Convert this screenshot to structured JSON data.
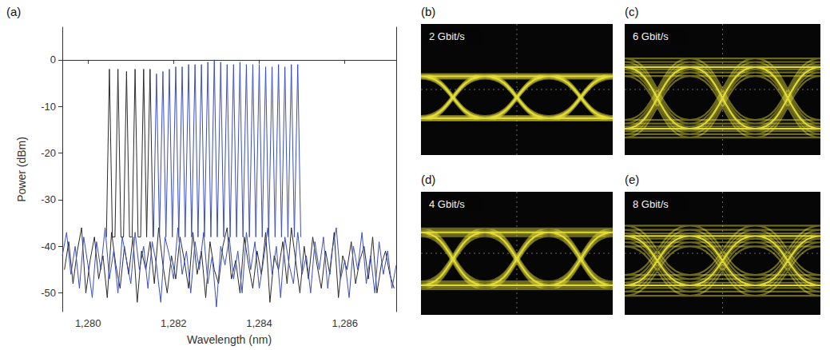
{
  "chart_data": {
    "type": "line",
    "panel": "(a)",
    "x_label": "Wavelength (nm)",
    "y_label": "Power (dBm)",
    "xlim": [
      1279.4,
      1287.2
    ],
    "xticks": [
      1280,
      1282,
      1284,
      1286
    ],
    "ylim": [
      -54,
      7
    ],
    "yticks": [
      -50,
      -40,
      -30,
      -20,
      -10,
      0
    ],
    "grid": false,
    "series": [
      {
        "color": "#2b2b2b",
        "x": [
          1279.45,
          1279.55,
          1279.65,
          1279.75,
          1279.85,
          1279.95,
          1280.05,
          1280.15,
          1280.25,
          1280.35,
          1280.45,
          1280.55,
          1280.65,
          1280.75,
          1280.85,
          1280.95,
          1281.05,
          1281.15,
          1281.25,
          1281.35,
          1281.45,
          1281.55,
          1281.65,
          1281.75,
          1281.85,
          1281.95,
          1282.05,
          1282.15,
          1282.25,
          1282.35,
          1282.45,
          1282.55,
          1282.65,
          1282.75,
          1282.85,
          1282.95,
          1283.05,
          1283.15,
          1283.25,
          1283.35,
          1283.45,
          1283.55,
          1283.65,
          1283.75,
          1283.85,
          1283.95,
          1284.05,
          1284.15,
          1284.25,
          1284.35,
          1284.45,
          1284.55,
          1284.65,
          1284.75,
          1284.85,
          1284.95,
          1285.05,
          1285.15,
          1285.25,
          1285.35,
          1285.45,
          1285.55,
          1285.65,
          1285.75,
          1285.85,
          1285.95,
          1286.05,
          1286.15,
          1286.25,
          1286.35,
          1286.45,
          1286.55,
          1286.65,
          1286.75,
          1286.85,
          1286.95,
          1287.05,
          1287.15
        ],
        "values": [
          -45,
          -39,
          -48,
          -41,
          -36,
          -50,
          -43,
          -38,
          -47,
          -42,
          -51,
          -37,
          -44,
          -49,
          -40,
          -46,
          -38,
          -52,
          -41,
          -45,
          -39,
          -48,
          -36,
          -44,
          -50,
          -42,
          -47,
          -38,
          -43,
          -49,
          -37,
          -46,
          -41,
          -51,
          -39,
          -45,
          -48,
          -40,
          -36,
          -47,
          -43,
          -50,
          -38,
          -44,
          -49,
          -41,
          -46,
          -37,
          -52,
          -42,
          -45,
          -39,
          -48,
          -36,
          -43,
          -50,
          -40,
          -47,
          -38,
          -44,
          -49,
          -41,
          -46,
          -37,
          -51,
          -42,
          -45,
          -39,
          -48,
          -43,
          -40,
          -47,
          -38,
          -50,
          -44,
          -41,
          -46,
          -49
        ]
      },
      {
        "color": "#3c4fc0",
        "x": [
          1279.4,
          1279.5,
          1279.6,
          1279.7,
          1279.8,
          1279.9,
          1280.0,
          1280.1,
          1280.2,
          1280.3,
          1280.4,
          1280.5,
          1280.6,
          1280.7,
          1280.8,
          1280.9,
          1281.0,
          1281.1,
          1281.2,
          1281.3,
          1281.4,
          1281.5,
          1281.6,
          1281.7,
          1281.8,
          1281.9,
          1282.0,
          1282.1,
          1282.2,
          1282.3,
          1282.4,
          1282.5,
          1282.6,
          1282.7,
          1282.8,
          1282.9,
          1283.0,
          1283.1,
          1283.2,
          1283.3,
          1283.4,
          1283.5,
          1283.6,
          1283.7,
          1283.8,
          1283.9,
          1284.0,
          1284.1,
          1284.2,
          1284.3,
          1284.4,
          1284.5,
          1284.6,
          1284.7,
          1284.8,
          1284.9,
          1285.0,
          1285.1,
          1285.2,
          1285.3,
          1285.4,
          1285.5,
          1285.6,
          1285.7,
          1285.8,
          1285.9,
          1286.0,
          1286.1,
          1286.2,
          1286.3,
          1286.4,
          1286.5,
          1286.6,
          1286.7,
          1286.8,
          1286.9,
          1287.0,
          1287.1,
          1287.2
        ],
        "values": [
          -42,
          -37,
          -46,
          -40,
          -49,
          -38,
          -44,
          -51,
          -39,
          -45,
          -36,
          -47,
          -41,
          -50,
          -38,
          -43,
          -48,
          -37,
          -45,
          -40,
          -49,
          -39,
          -44,
          -52,
          -38,
          -42,
          -47,
          -36,
          -46,
          -41,
          -50,
          -39,
          -45,
          -37,
          -48,
          -42,
          -53,
          -40,
          -44,
          -38,
          -47,
          -41,
          -50,
          -37,
          -45,
          -39,
          -49,
          -43,
          -36,
          -46,
          -40,
          -51,
          -38,
          -44,
          -48,
          -37,
          -46,
          -42,
          -50,
          -39,
          -45,
          -38,
          -49,
          -41,
          -36,
          -47,
          -43,
          -51,
          -40,
          -45,
          -37,
          -48,
          -42,
          -50,
          -39,
          -46,
          -41,
          -49,
          -44
        ]
      },
      {
        "color": "#2b2b2b",
        "x": [
          1280.43,
          1280.5,
          1280.57,
          1280.63,
          1280.7,
          1280.77,
          1280.83,
          1280.9,
          1280.97,
          1281.03,
          1281.1,
          1281.17,
          1281.23,
          1281.3,
          1281.37,
          1281.38,
          1281.45,
          1281.52
        ],
        "values": [
          -38,
          -2,
          -38,
          -38,
          -2,
          -38,
          -38,
          -2.5,
          -38,
          -38,
          -2,
          -38,
          -38,
          -2,
          -38,
          -38,
          -2,
          -38
        ]
      },
      {
        "color": "#3c4fc0",
        "x": [
          1281.53,
          1281.6,
          1281.67,
          1281.68,
          1281.75,
          1281.82,
          1281.83,
          1281.9,
          1281.97,
          1281.98,
          1282.05,
          1282.12,
          1282.13,
          1282.2,
          1282.27,
          1282.28,
          1282.35,
          1282.42,
          1282.43,
          1282.5,
          1282.57,
          1282.58,
          1282.65,
          1282.72,
          1282.73,
          1282.8,
          1282.87,
          1282.88,
          1282.95,
          1283.02,
          1283.03,
          1283.1,
          1283.17,
          1283.18,
          1283.25,
          1283.32,
          1283.33,
          1283.4,
          1283.47,
          1283.48,
          1283.55,
          1283.62,
          1283.63,
          1283.7,
          1283.77,
          1283.78,
          1283.85,
          1283.92,
          1283.93,
          1284.0,
          1284.07,
          1284.08,
          1284.15,
          1284.22,
          1284.23,
          1284.3,
          1284.37,
          1284.38,
          1284.45,
          1284.52,
          1284.53,
          1284.6,
          1284.67,
          1284.68,
          1284.75,
          1284.82,
          1284.83,
          1284.9,
          1284.97
        ],
        "values": [
          -38,
          -3,
          -38,
          -38,
          -2.5,
          -38,
          -38,
          -2,
          -38,
          -38,
          -1.5,
          -38,
          -38,
          -1.5,
          -38,
          -38,
          -1,
          -38,
          -38,
          -1,
          -38,
          -38,
          -1,
          -38,
          -38,
          -0.5,
          -38,
          -38,
          0,
          -38,
          -38,
          -0.5,
          -38,
          -38,
          -1,
          -38,
          -38,
          -1,
          -38,
          -38,
          -0.5,
          -38,
          -38,
          -1,
          -38,
          -38,
          -1,
          -38,
          -38,
          -1,
          -38,
          -38,
          -1.5,
          -38,
          -38,
          -1.5,
          -38,
          -38,
          -1,
          -38,
          -38,
          -1.5,
          -38,
          -38,
          -1,
          -38,
          -38,
          -1,
          -38
        ]
      }
    ]
  },
  "eye_diagrams": [
    {
      "panel": "(b)",
      "label": "2 Gbit/s"
    },
    {
      "panel": "(c)",
      "label": "6 Gbit/s"
    },
    {
      "panel": "(d)",
      "label": "4 Gbit/s"
    },
    {
      "panel": "(e)",
      "label": "8 Gbit/s"
    }
  ]
}
